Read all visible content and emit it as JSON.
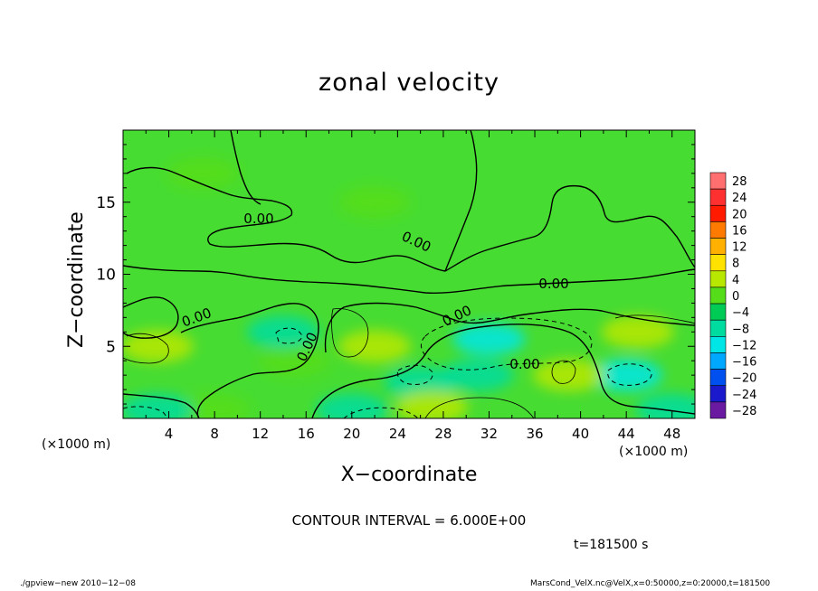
{
  "chart_data": {
    "type": "heatmap",
    "title": "zonal velocity",
    "xlabel": "X−coordinate",
    "ylabel": "Z−coordinate",
    "x_unit_labels": [
      "(×1000 m)",
      "(×1000 m)"
    ],
    "xlim": [
      0,
      50
    ],
    "ylim": [
      0,
      20
    ],
    "x_ticks": [
      4,
      8,
      12,
      16,
      20,
      24,
      28,
      32,
      36,
      40,
      44,
      48
    ],
    "y_ticks": [
      5,
      10,
      15
    ],
    "colorbar": {
      "levels": [
        28,
        24,
        20,
        16,
        12,
        8,
        4,
        0,
        -4,
        -8,
        -12,
        -16,
        -20,
        -24,
        -28
      ],
      "tick_labels": [
        "28",
        "24",
        "20",
        "16",
        "12",
        "8",
        "4",
        "0",
        "−4",
        "−8",
        "−12",
        "−16",
        "−20",
        "−24",
        "−28"
      ],
      "colors": [
        "#ff6f6f",
        "#ff3030",
        "#ff1a00",
        "#ff7a00",
        "#ffb000",
        "#ffe200",
        "#b8e800",
        "#55dd1a",
        "#00cc55",
        "#00dca0",
        "#00e6e6",
        "#00a8ff",
        "#0050f0",
        "#1a1acc",
        "#6a1aa0"
      ]
    },
    "contour_label": "0.00",
    "contour_interval_text": "CONTOUR INTERVAL = 6.000E+00",
    "time_text": "t=181500 s",
    "regions": [
      {
        "value": 0,
        "note": "background"
      },
      {
        "x": 7,
        "y": 17,
        "value": 1
      },
      {
        "x": 22,
        "y": 15,
        "value": 1
      },
      {
        "x": 3,
        "y": 5,
        "value": 7
      },
      {
        "x": 15,
        "y": 4,
        "value": 2
      },
      {
        "x": 22,
        "y": 5,
        "value": 6
      },
      {
        "x": 32,
        "y": 5.5,
        "value": -9
      },
      {
        "x": 31,
        "y": 3,
        "value": -7
      },
      {
        "x": 44,
        "y": 3,
        "value": -9
      },
      {
        "x": 26,
        "y": 2.5,
        "value": -7
      },
      {
        "x": 39,
        "y": 3,
        "value": 5
      },
      {
        "x": 45,
        "y": 6,
        "value": 4
      },
      {
        "x": 14,
        "y": 6,
        "value": -6
      },
      {
        "x": 27,
        "y": 0.8,
        "value": 6
      },
      {
        "x": 20,
        "y": 0.6,
        "value": -6
      },
      {
        "x": 8,
        "y": 0.6,
        "value": 3
      },
      {
        "x": 3,
        "y": 0.6,
        "value": -8
      },
      {
        "x": 48,
        "y": 0.6,
        "value": -7
      }
    ]
  },
  "footer": {
    "left": "./gpview−new   2010−12−08",
    "right": "MarsCond_VelX.nc@VelX,x=0:50000,z=0:20000,t=181500"
  }
}
